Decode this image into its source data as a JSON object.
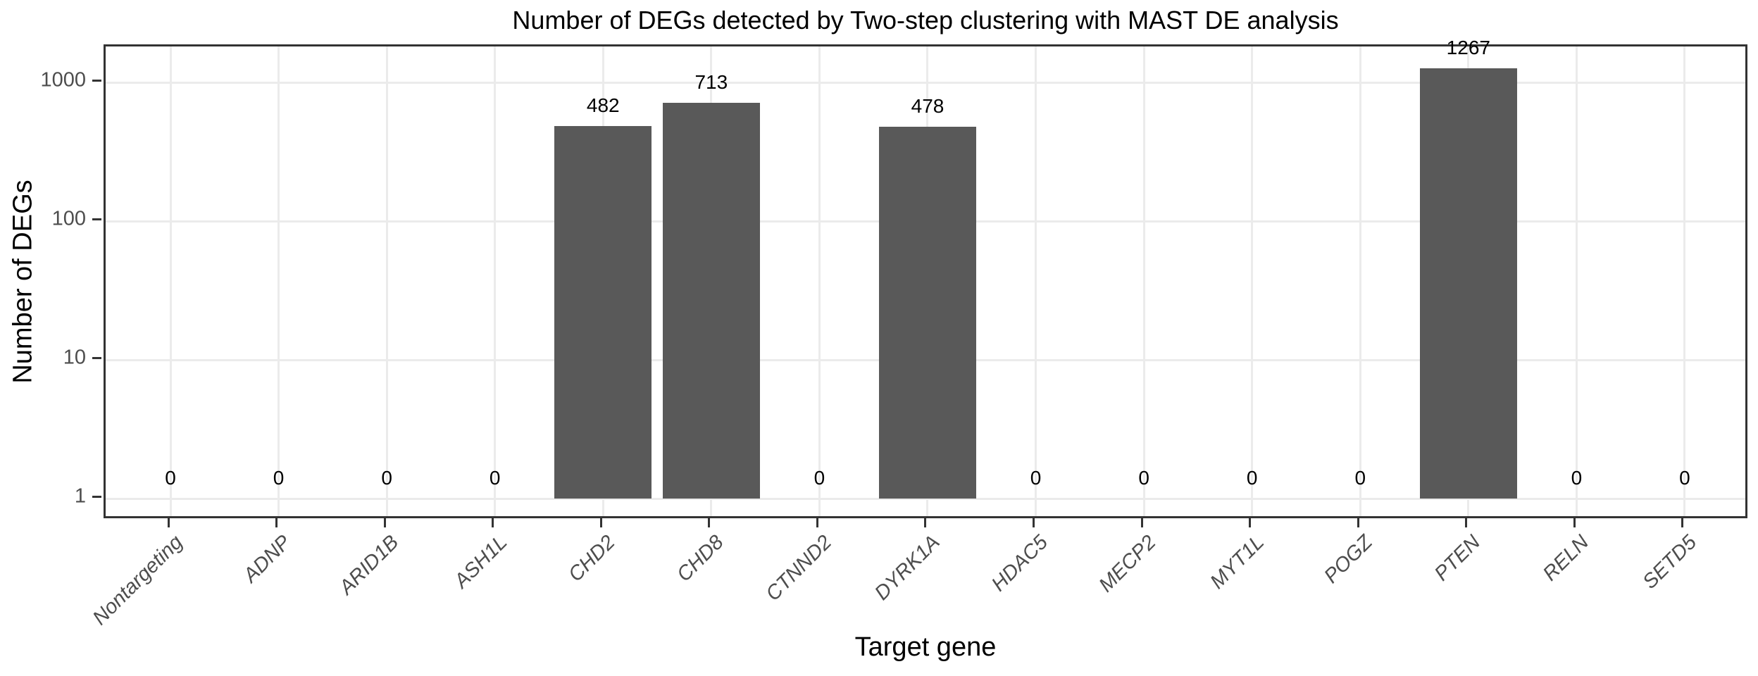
{
  "title": "Number of DEGs detected by Two-step clustering with MAST DE analysis",
  "chart_data": {
    "type": "bar",
    "title": "Number of DEGs detected by Two-step clustering with MAST DE analysis",
    "xlabel": "Target gene",
    "ylabel": "Number of DEGs",
    "categories": [
      "Nontargeting",
      "ADNP",
      "ARID1B",
      "ASH1L",
      "CHD2",
      "CHD8",
      "CTNND2",
      "DYRK1A",
      "HDAC5",
      "MECP2",
      "MYT1L",
      "POGZ",
      "PTEN",
      "RELN",
      "SETD5"
    ],
    "values": [
      0,
      0,
      0,
      0,
      482,
      713,
      0,
      478,
      0,
      0,
      0,
      0,
      1267,
      0,
      0
    ],
    "bar_labels": [
      "0",
      "0",
      "0",
      "0",
      "482",
      "713",
      "0",
      "478",
      "0",
      "0",
      "0",
      "0",
      "1267",
      "0",
      "0"
    ],
    "y_scale": "log10",
    "y_ticks": [
      1,
      10,
      100,
      1000
    ],
    "y_tick_labels": [
      "1",
      "10",
      "100",
      "1000"
    ],
    "ylim": [
      0.7,
      1790
    ],
    "grid": true,
    "legend": "none",
    "x_tick_style": "italic, rotated 45deg",
    "colors": {
      "bar_fill": "#595959",
      "panel_border": "#333333",
      "gridline": "#ebebeb",
      "tick_mark": "#333333",
      "tick_text": "#4d4d4d",
      "title_text": "#000000",
      "value_label_text": "#000000",
      "background": "#ffffff"
    }
  }
}
